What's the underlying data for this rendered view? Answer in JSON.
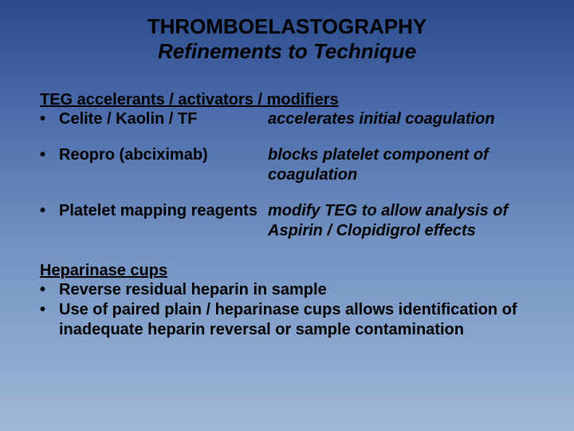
{
  "colors": {
    "gradient_top": "#2a4a8a",
    "gradient_mid1": "#4a6aaa",
    "gradient_mid2": "#7090c0",
    "gradient_bottom": "#a0b8d8",
    "text": "#000000"
  },
  "typography": {
    "font_family": "Comic Sans MS",
    "title_fontsize": 26,
    "body_fontsize": 20,
    "title_weight": "bold",
    "body_weight": "bold"
  },
  "slide": {
    "title_line1": "THROMBOELASTOGRAPHY",
    "title_line2": "Refinements to Technique",
    "section1": {
      "heading": "TEG accelerants / activators / modifiers",
      "items": [
        {
          "left": "Celite / Kaolin / TF",
          "right": "accelerates initial coagulation"
        },
        {
          "left": "Reopro (abciximab)",
          "right": "blocks platelet component of coagulation"
        },
        {
          "left": "Platelet mapping reagents",
          "right": "modify TEG to allow analysis of Aspirin / Clopidigrol effects"
        }
      ]
    },
    "section2": {
      "heading": "Heparinase cups",
      "items": [
        "Reverse residual heparin in sample",
        "Use of paired plain / heparinase cups allows identification of inadequate heparin reversal or sample contamination"
      ]
    }
  }
}
